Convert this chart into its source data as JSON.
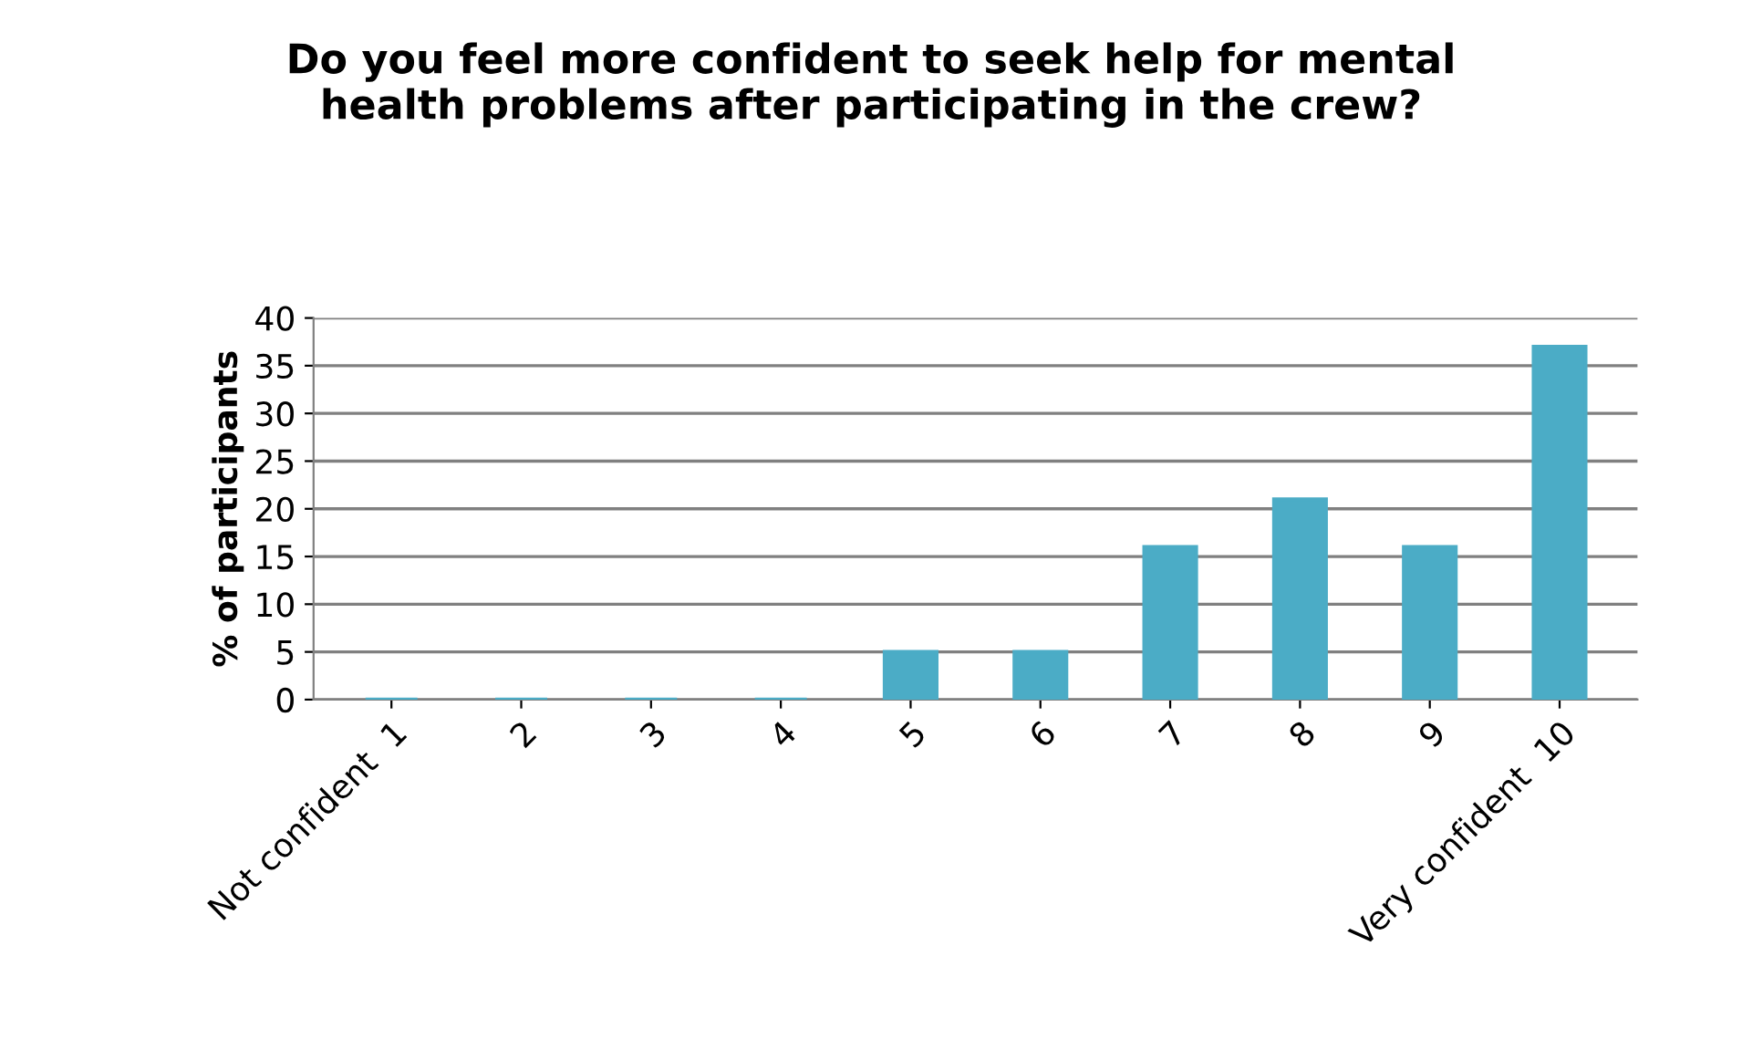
{
  "chart_data": {
    "type": "bar",
    "title": "Do you feel more confident to seek help for mental\nhealth problems after participating in the crew?",
    "ylabel": "% of participants",
    "categories": [
      "Not confident  1",
      "2",
      "3",
      "4",
      "5",
      "6",
      "7",
      "8",
      "9",
      "Very confident  10"
    ],
    "values": [
      0,
      0,
      0,
      0,
      5,
      5,
      16,
      21,
      16,
      37
    ],
    "color": "#4bacc6",
    "ylim": [
      0,
      40
    ],
    "yticks": [
      0,
      5,
      10,
      15,
      20,
      25,
      30,
      35,
      40
    ],
    "grid": "y",
    "legend": false
  }
}
